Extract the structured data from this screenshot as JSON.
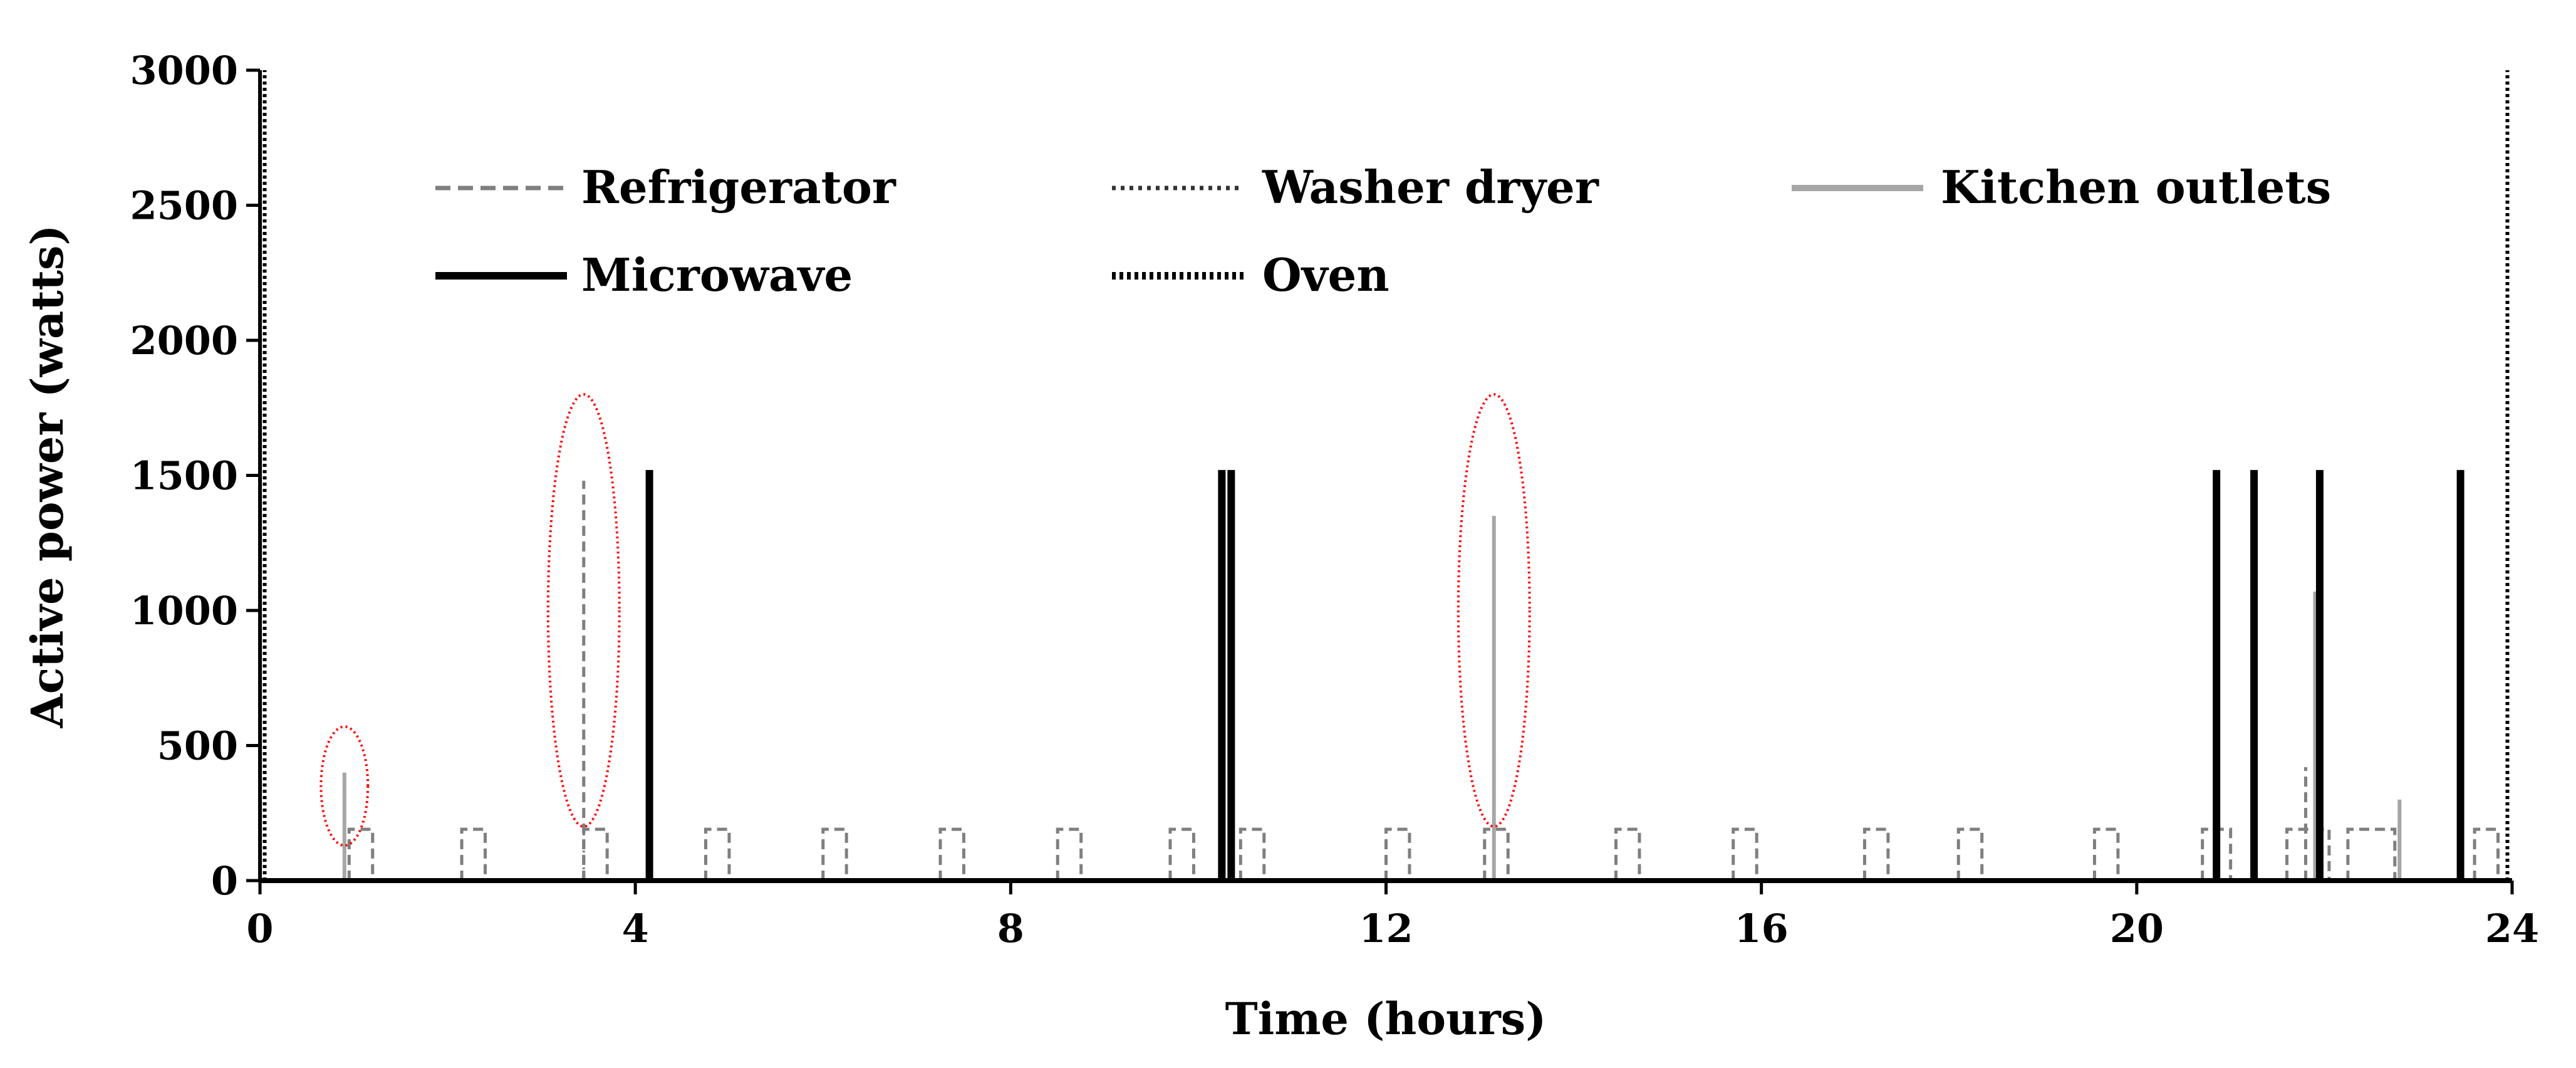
{
  "chart_data": {
    "type": "line",
    "title": "",
    "xlabel": "Time (hours)",
    "ylabel": "Active power (watts)",
    "xlim": [
      0,
      24
    ],
    "ylim": [
      0,
      3000
    ],
    "x_ticks": [
      0,
      4,
      8,
      12,
      16,
      20,
      24
    ],
    "y_ticks": [
      0,
      500,
      1000,
      1500,
      2000,
      2500,
      3000
    ],
    "grid": false,
    "legend_position": "top",
    "series": [
      {
        "name": "Refrigerator",
        "style": "dashed",
        "color": "#7f7f7f",
        "on_level_watts": 190,
        "on_intervals_hours": [
          [
            0.95,
            1.2
          ],
          [
            2.15,
            2.4
          ],
          [
            3.45,
            3.7
          ],
          [
            4.75,
            5.0
          ],
          [
            6.0,
            6.25
          ],
          [
            7.25,
            7.5
          ],
          [
            8.5,
            8.75
          ],
          [
            9.7,
            9.95
          ],
          [
            10.45,
            10.7
          ],
          [
            12.0,
            12.25
          ],
          [
            13.05,
            13.3
          ],
          [
            14.45,
            14.7
          ],
          [
            15.7,
            15.95
          ],
          [
            17.1,
            17.35
          ],
          [
            18.1,
            18.35
          ],
          [
            19.55,
            19.8
          ],
          [
            20.7,
            21.0
          ],
          [
            21.6,
            22.05
          ],
          [
            22.25,
            22.75
          ],
          [
            23.6,
            23.85
          ]
        ],
        "spikes": [
          {
            "x": 3.45,
            "y": 1480
          },
          {
            "x": 21.8,
            "y": 420
          }
        ]
      },
      {
        "name": "Washer dryer",
        "style": "dotted",
        "color": "#555555",
        "spikes": [
          {
            "x": 3.45,
            "y": 190
          }
        ]
      },
      {
        "name": "Kitchen outlets",
        "style": "solid",
        "color": "#a6a6a6",
        "spikes": [
          {
            "x": 0.9,
            "y": 400
          },
          {
            "x": 13.15,
            "y": 1350
          },
          {
            "x": 21.9,
            "y": 1070
          },
          {
            "x": 22.8,
            "y": 300
          }
        ]
      },
      {
        "name": "Microwave",
        "style": "solid",
        "color": "#000000",
        "spikes": [
          {
            "x": 4.15,
            "y": 1520
          },
          {
            "x": 10.25,
            "y": 1520
          },
          {
            "x": 10.35,
            "y": 1520
          },
          {
            "x": 20.85,
            "y": 1520
          },
          {
            "x": 21.25,
            "y": 1520
          },
          {
            "x": 21.95,
            "y": 1520
          },
          {
            "x": 23.45,
            "y": 1520
          }
        ]
      },
      {
        "name": "Oven",
        "style": "dotted",
        "color": "#000000",
        "spikes": [
          {
            "x": 0.05,
            "y": 3000
          },
          {
            "x": 23.95,
            "y": 3000
          }
        ]
      }
    ],
    "annotations": [
      {
        "type": "ellipse",
        "color": "#ff0000",
        "style": "dotted",
        "center": [
          0.9,
          350
        ],
        "x_radius": 0.25,
        "y_radius": 220
      },
      {
        "type": "ellipse",
        "color": "#ff0000",
        "style": "dotted",
        "center": [
          3.45,
          1000
        ],
        "x_radius": 0.38,
        "y_radius": 800
      },
      {
        "type": "ellipse",
        "color": "#ff0000",
        "style": "dotted",
        "center": [
          13.15,
          1000
        ],
        "x_radius": 0.38,
        "y_radius": 800
      }
    ]
  }
}
